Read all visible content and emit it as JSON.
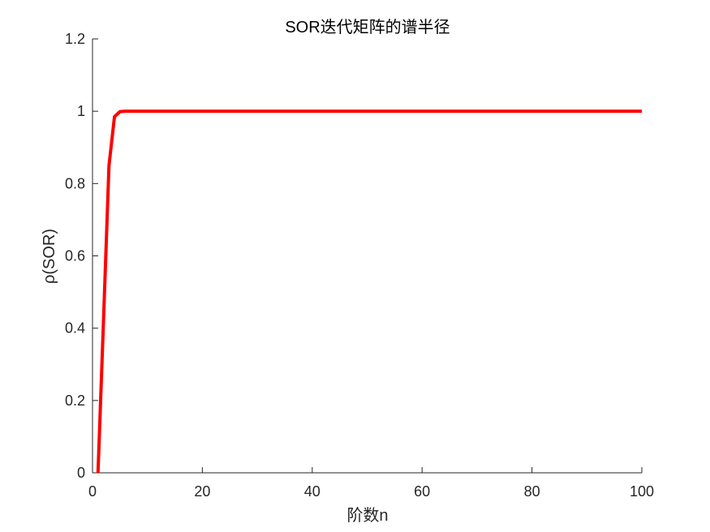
{
  "chart_data": {
    "type": "line",
    "title": "SOR迭代矩阵的谱半径",
    "xlabel": "阶数n",
    "ylabel": "ρ(SOR)",
    "xlim": [
      0,
      100
    ],
    "ylim": [
      0,
      1.2
    ],
    "xticks": [
      0,
      20,
      40,
      60,
      80,
      100
    ],
    "yticks": [
      0,
      0.2,
      0.4,
      0.6,
      0.8,
      1,
      1.2
    ],
    "xtick_labels": [
      "0",
      "20",
      "40",
      "60",
      "80",
      "100"
    ],
    "ytick_labels": [
      "0",
      "0.2",
      "0.4",
      "0.6",
      "0.8",
      "1",
      "1.2"
    ],
    "grid": false,
    "series": [
      {
        "color": "#ff0000",
        "x": [
          1,
          2,
          3,
          4,
          5,
          6,
          7,
          8,
          9,
          10,
          20,
          30,
          40,
          50,
          60,
          70,
          80,
          90,
          100
        ],
        "y": [
          0,
          0.42,
          0.85,
          0.985,
          0.999,
          1,
          1,
          1,
          1,
          1,
          1,
          1,
          1,
          1,
          1,
          1,
          1,
          1,
          1
        ]
      }
    ]
  }
}
